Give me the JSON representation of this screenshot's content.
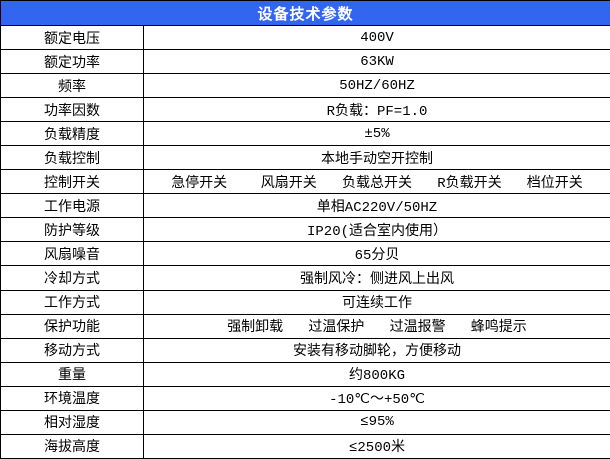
{
  "table": {
    "title": "设备技术参数",
    "rows": [
      {
        "label": "额定电压",
        "value": "400V"
      },
      {
        "label": "额定功率",
        "value": "63KW"
      },
      {
        "label": "频率",
        "value": "50HZ/60HZ"
      },
      {
        "label": "功率因数",
        "value": "R负载：PF=1.0"
      },
      {
        "label": "负载精度",
        "value": "±5%"
      },
      {
        "label": "负载控制",
        "value": "本地手动空开控制"
      },
      {
        "label": "控制开关",
        "value": "急停开关    风扇开关   负载总开关   R负载开关   档位开关"
      },
      {
        "label": "工作电源",
        "value": "单相AC220V/50HZ"
      },
      {
        "label": "防护等级",
        "value": "IP20(适合室内使用）"
      },
      {
        "label": "风扇噪音",
        "value": "65分贝"
      },
      {
        "label": "冷却方式",
        "value": "强制风冷：侧进风上出风"
      },
      {
        "label": "工作方式",
        "value": "可连续工作"
      },
      {
        "label": "保护功能",
        "value": "强制卸载   过温保护   过温报警   蜂鸣提示"
      },
      {
        "label": "移动方式",
        "value": "安装有移动脚轮，方便移动"
      },
      {
        "label": "重量",
        "value": "约800KG"
      },
      {
        "label": "环境温度",
        "value": "-10℃～+50℃"
      },
      {
        "label": "相对湿度",
        "value": "≤95%"
      },
      {
        "label": "海拔高度",
        "value": "≤2500米"
      }
    ]
  },
  "colors": {
    "header_bg": "#3366F0",
    "header_text": "#FFFFFF",
    "border": "#000000",
    "body_bg": "#FFFFFF",
    "text": "#000000"
  }
}
